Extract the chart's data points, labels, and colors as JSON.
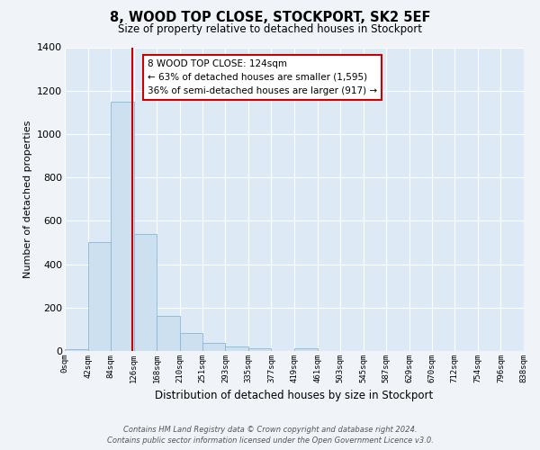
{
  "title": "8, WOOD TOP CLOSE, STOCKPORT, SK2 5EF",
  "subtitle": "Size of property relative to detached houses in Stockport",
  "xlabel": "Distribution of detached houses by size in Stockport",
  "ylabel": "Number of detached properties",
  "bar_color": "#cce0f0",
  "bar_edge_color": "#88b8d8",
  "background_color": "#ddeaf6",
  "grid_color": "#ffffff",
  "fig_background": "#f0f4f8",
  "bin_labels": [
    "0sqm",
    "42sqm",
    "84sqm",
    "126sqm",
    "168sqm",
    "210sqm",
    "251sqm",
    "293sqm",
    "335sqm",
    "377sqm",
    "419sqm",
    "461sqm",
    "503sqm",
    "545sqm",
    "587sqm",
    "629sqm",
    "670sqm",
    "712sqm",
    "754sqm",
    "796sqm",
    "838sqm"
  ],
  "bar_values": [
    10,
    500,
    1150,
    540,
    160,
    85,
    38,
    22,
    12,
    0,
    12,
    0,
    0,
    0,
    0,
    0,
    0,
    0,
    0,
    0
  ],
  "ylim": [
    0,
    1400
  ],
  "yticks": [
    0,
    200,
    400,
    600,
    800,
    1000,
    1200,
    1400
  ],
  "property_line_x": 124,
  "vline_color": "#cc0000",
  "annotation_box_edge": "#cc0000",
  "annotation_title": "8 WOOD TOP CLOSE: 124sqm",
  "annotation_line1": "← 63% of detached houses are smaller (1,595)",
  "annotation_line2": "36% of semi-detached houses are larger (917) →",
  "footer_line1": "Contains HM Land Registry data © Crown copyright and database right 2024.",
  "footer_line2": "Contains public sector information licensed under the Open Government Licence v3.0."
}
